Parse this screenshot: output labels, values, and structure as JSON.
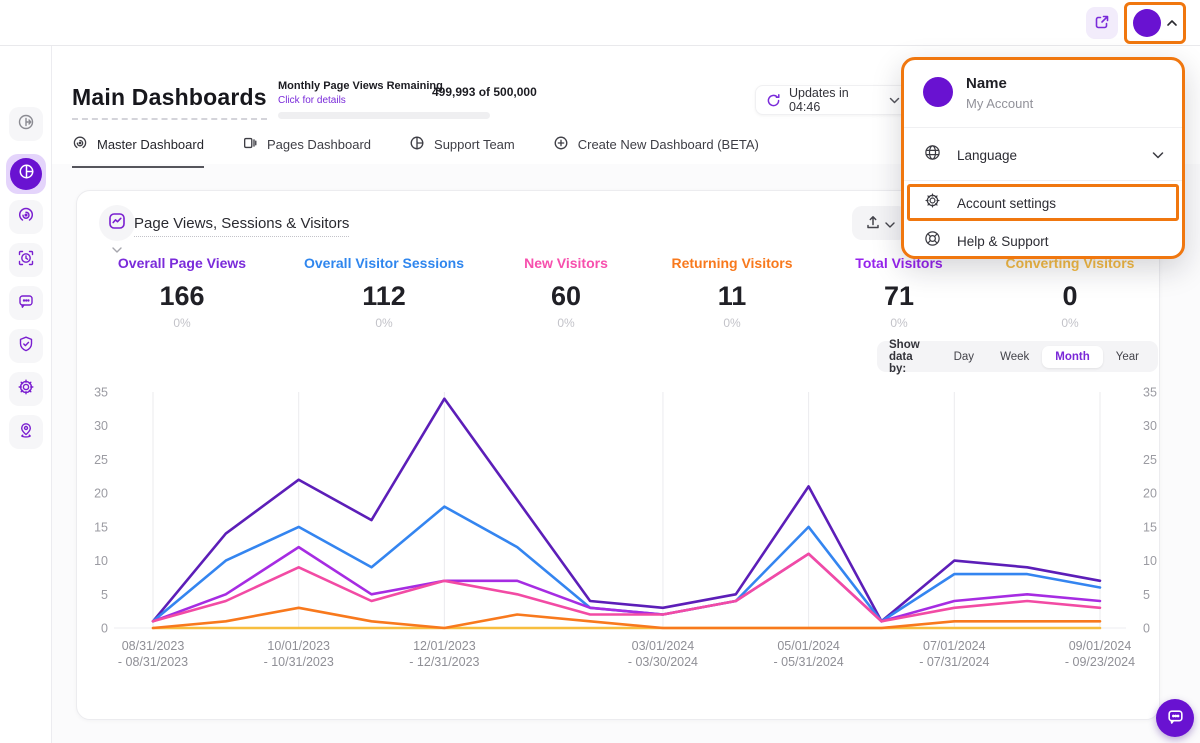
{
  "header": {
    "title": "Main Dashboards",
    "quota_label": "Monthly Page Views Remaining",
    "quota_link": "Click for details",
    "quota_value": "499,993 of 500,000",
    "updates_label": "Updates in 04:46"
  },
  "tabs": [
    {
      "label": "Master Dashboard",
      "active": true
    },
    {
      "label": "Pages Dashboard",
      "active": false
    },
    {
      "label": "Support Team",
      "active": false
    },
    {
      "label": "Create New Dashboard (BETA)",
      "active": false
    }
  ],
  "card": {
    "title": "Page Views, Sessions & Visitors",
    "metrics": [
      {
        "label": "Overall Page Views",
        "value": "166",
        "delta": "0%",
        "color": "#7a2bda"
      },
      {
        "label": "Overall Visitor Sessions",
        "value": "112",
        "delta": "0%",
        "color": "#2f86ee"
      },
      {
        "label": "New Visitors",
        "value": "60",
        "delta": "0%",
        "color": "#f74fad"
      },
      {
        "label": "Returning Visitors",
        "value": "11",
        "delta": "0%",
        "color": "#f8791d"
      },
      {
        "label": "Total Visitors",
        "value": "71",
        "delta": "0%",
        "color": "#9623ed"
      },
      {
        "label": "Converting Visitors",
        "value": "0",
        "delta": "0%",
        "color": "#f6bc43"
      }
    ],
    "show_data_by": {
      "label": "Show data by:",
      "options": [
        "Day",
        "Week",
        "Month",
        "Year"
      ],
      "selected": "Month"
    }
  },
  "menu": {
    "name": "Name",
    "account": "My Account",
    "language": "Language",
    "account_settings": "Account settings",
    "help_support": "Help & Support"
  },
  "chart_data": {
    "type": "line",
    "title": "Page Views, Sessions & Visitors",
    "ylim": [
      0,
      35
    ],
    "yticks": [
      0,
      5,
      10,
      15,
      20,
      25,
      30,
      35
    ],
    "grid": true,
    "legend_position": "none",
    "n_points": 14,
    "x_grid_indices": [
      0,
      2,
      4,
      7,
      9,
      11,
      13
    ],
    "x_tick_labels": [
      [
        "08/31/2023",
        "- 08/31/2023"
      ],
      [
        "10/01/2023",
        "- 10/31/2023"
      ],
      [
        "12/01/2023",
        "- 12/31/2023"
      ],
      [
        "03/01/2024",
        "- 03/30/2024"
      ],
      [
        "05/01/2024",
        "- 05/31/2024"
      ],
      [
        "07/01/2024",
        "- 07/31/2024"
      ],
      [
        "09/01/2024",
        "- 09/23/2024"
      ]
    ],
    "series": [
      {
        "name": "Converting Visitors",
        "color": "#f7be3f",
        "values": [
          0,
          0,
          0,
          0,
          0,
          0,
          0,
          0,
          0,
          0,
          0,
          0,
          0,
          0
        ]
      },
      {
        "name": "Overall Page Views",
        "color": "#5c1eb8",
        "values": [
          1,
          14,
          22,
          16,
          34,
          19,
          4,
          3,
          5,
          21,
          1,
          10,
          9,
          7
        ]
      },
      {
        "name": "Overall Visitor Sessions",
        "color": "#3485f0",
        "values": [
          1,
          10,
          15,
          9,
          18,
          12,
          3,
          2,
          4,
          15,
          1,
          8,
          8,
          6
        ]
      },
      {
        "name": "Total Visitors",
        "color": "#a62ce2",
        "values": [
          1,
          5,
          12,
          5,
          7,
          7,
          3,
          2,
          4,
          11,
          1,
          4,
          5,
          4
        ]
      },
      {
        "name": "New Visitors",
        "color": "#f24ba4",
        "values": [
          1,
          4,
          9,
          4,
          7,
          5,
          2,
          2,
          4,
          11,
          1,
          3,
          4,
          3
        ]
      },
      {
        "name": "Returning Visitors",
        "color": "#f8791d",
        "values": [
          0,
          1,
          3,
          1,
          0,
          2,
          1,
          0,
          0,
          0,
          0,
          1,
          1,
          1
        ]
      }
    ]
  }
}
